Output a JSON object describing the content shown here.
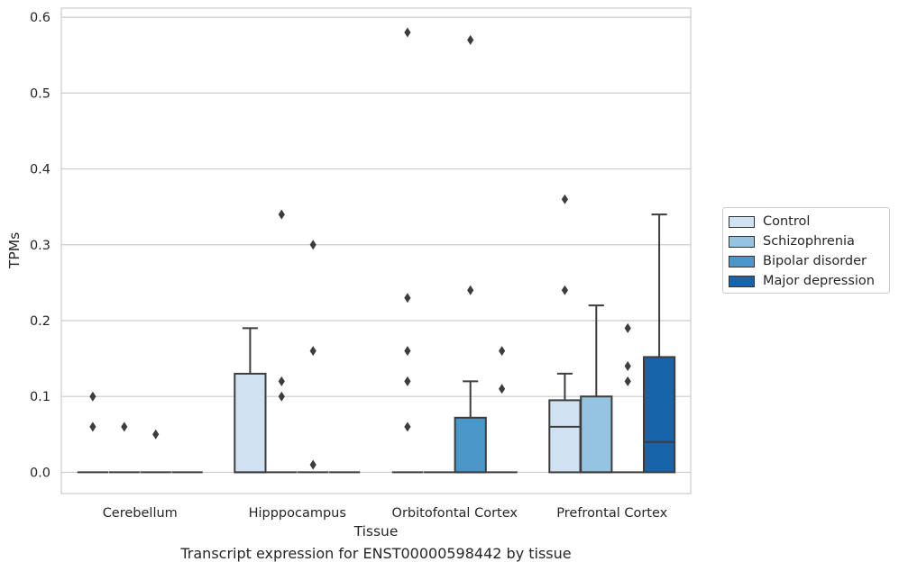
{
  "chart_data": {
    "type": "box",
    "xlabel": "Tissue",
    "ylabel": "TPMs",
    "caption": "Transcript expression for ENST00000598442 by tissue",
    "ylim": [
      -0.028,
      0.612
    ],
    "yticks": [
      0.0,
      0.1,
      0.2,
      0.3,
      0.4,
      0.5,
      0.6
    ],
    "ytick_labels": [
      "0.0",
      "0.1",
      "0.2",
      "0.3",
      "0.4",
      "0.5",
      "0.6"
    ],
    "grid": "horizontal",
    "legend_position": "right-outside",
    "categories": [
      "Cerebellum",
      "Hipppocampus",
      "Orbitofontal Cortex",
      "Prefrontal Cortex"
    ],
    "series": [
      {
        "name": "Control",
        "color": "#d0e1f2",
        "boxes": [
          {
            "q1": 0,
            "median": 0,
            "q3": 0,
            "whisker_low": 0,
            "whisker_high": 0,
            "outliers": [
              0.1,
              0.06
            ]
          },
          {
            "q1": 0,
            "median": 0,
            "q3": 0.13,
            "whisker_low": 0,
            "whisker_high": 0.19,
            "outliers": []
          },
          {
            "q1": 0,
            "median": 0,
            "q3": 0,
            "whisker_low": 0,
            "whisker_high": 0,
            "outliers": [
              0.58,
              0.23,
              0.16,
              0.12,
              0.06
            ]
          },
          {
            "q1": 0,
            "median": 0.06,
            "q3": 0.095,
            "whisker_low": 0,
            "whisker_high": 0.13,
            "outliers": [
              0.36,
              0.24
            ]
          }
        ]
      },
      {
        "name": "Schizophrenia",
        "color": "#94c4df",
        "boxes": [
          {
            "q1": 0,
            "median": 0,
            "q3": 0,
            "whisker_low": 0,
            "whisker_high": 0,
            "outliers": [
              0.06
            ]
          },
          {
            "q1": 0,
            "median": 0,
            "q3": 0,
            "whisker_low": 0,
            "whisker_high": 0,
            "outliers": [
              0.34,
              0.12,
              0.1
            ]
          },
          {
            "q1": 0,
            "median": 0,
            "q3": 0,
            "whisker_low": 0,
            "whisker_high": 0,
            "outliers": []
          },
          {
            "q1": 0,
            "median": 0,
            "q3": 0.1,
            "whisker_low": 0,
            "whisker_high": 0.22,
            "outliers": []
          }
        ]
      },
      {
        "name": "Bipolar disorder",
        "color": "#4a98c9",
        "boxes": [
          {
            "q1": 0,
            "median": 0,
            "q3": 0,
            "whisker_low": 0,
            "whisker_high": 0,
            "outliers": [
              0.05
            ]
          },
          {
            "q1": 0,
            "median": 0,
            "q3": 0,
            "whisker_low": 0,
            "whisker_high": 0,
            "outliers": [
              0.3,
              0.16,
              0.01
            ]
          },
          {
            "q1": 0,
            "median": 0,
            "q3": 0.072,
            "whisker_low": 0,
            "whisker_high": 0.12,
            "outliers": [
              0.57,
              0.24
            ]
          },
          {
            "q1": 0,
            "median": 0,
            "q3": 0,
            "whisker_low": 0,
            "whisker_high": 0,
            "outliers": [
              0.19,
              0.14,
              0.12
            ]
          }
        ]
      },
      {
        "name": "Major depression",
        "color": "#1764ab",
        "boxes": [
          {
            "q1": 0,
            "median": 0,
            "q3": 0,
            "whisker_low": 0,
            "whisker_high": 0,
            "outliers": []
          },
          {
            "q1": 0,
            "median": 0,
            "q3": 0,
            "whisker_low": 0,
            "whisker_high": 0,
            "outliers": []
          },
          {
            "q1": 0,
            "median": 0,
            "q3": 0,
            "whisker_low": 0,
            "whisker_high": 0,
            "outliers": [
              0.16,
              0.11
            ]
          },
          {
            "q1": 0,
            "median": 0.04,
            "q3": 0.152,
            "whisker_low": 0,
            "whisker_high": 0.34,
            "outliers": []
          }
        ]
      }
    ]
  }
}
